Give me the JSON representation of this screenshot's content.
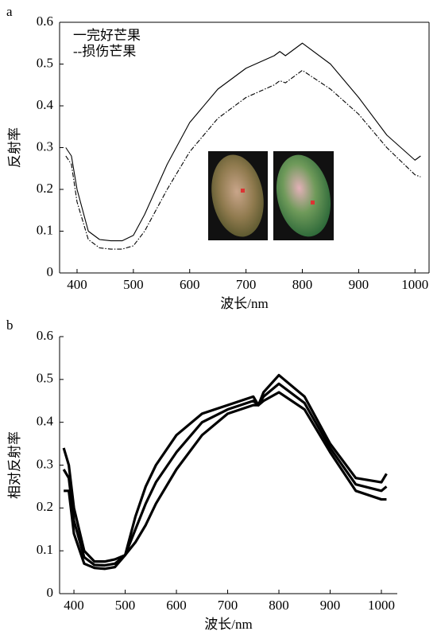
{
  "chart_data": [
    {
      "type": "line",
      "panel": "a",
      "ylabel": "反射率",
      "xlabel": "波长/nm",
      "x": [
        380,
        390,
        400,
        420,
        440,
        460,
        480,
        500,
        520,
        540,
        560,
        600,
        650,
        700,
        750,
        760,
        770,
        800,
        850,
        900,
        950,
        1000,
        1010
      ],
      "series": [
        {
          "name": "一完好芒果",
          "color": "#000000",
          "dash": "solid",
          "values": [
            0.3,
            0.28,
            0.2,
            0.1,
            0.08,
            0.077,
            0.077,
            0.09,
            0.14,
            0.2,
            0.26,
            0.36,
            0.44,
            0.49,
            0.52,
            0.53,
            0.52,
            0.55,
            0.5,
            0.42,
            0.33,
            0.27,
            0.28
          ]
        },
        {
          "name": "--损伤芒果",
          "color": "#000000",
          "dash": "dashdot",
          "values": [
            0.28,
            0.26,
            0.17,
            0.08,
            0.06,
            0.057,
            0.057,
            0.065,
            0.1,
            0.15,
            0.2,
            0.29,
            0.37,
            0.42,
            0.45,
            0.46,
            0.455,
            0.485,
            0.44,
            0.38,
            0.3,
            0.235,
            0.23
          ]
        }
      ],
      "xlim": [
        369,
        1025
      ],
      "xticks": [
        400,
        500,
        600,
        700,
        800,
        900,
        1000
      ],
      "ylim": [
        0,
        0.6
      ],
      "yticks": [
        0,
        0.1,
        0.2,
        0.3,
        0.4,
        0.5,
        0.6
      ],
      "box": true,
      "legend": "upper left"
    },
    {
      "type": "line",
      "panel": "b",
      "ylabel": "相对反射率",
      "xlabel": "波长/nm",
      "x": [
        380,
        390,
        400,
        420,
        440,
        460,
        480,
        500,
        520,
        540,
        560,
        600,
        650,
        700,
        750,
        760,
        770,
        800,
        850,
        900,
        950,
        1000,
        1010
      ],
      "series": [
        {
          "color": "#000000",
          "dash": "solid",
          "values": [
            0.34,
            0.3,
            0.2,
            0.1,
            0.075,
            0.075,
            0.08,
            0.09,
            0.18,
            0.25,
            0.3,
            0.37,
            0.42,
            0.44,
            0.46,
            0.44,
            0.47,
            0.51,
            0.46,
            0.35,
            0.27,
            0.26,
            0.28
          ]
        },
        {
          "color": "#000000",
          "dash": "solid",
          "values": [
            0.29,
            0.27,
            0.17,
            0.085,
            0.067,
            0.066,
            0.07,
            0.09,
            0.15,
            0.21,
            0.26,
            0.33,
            0.4,
            0.43,
            0.45,
            0.44,
            0.46,
            0.49,
            0.445,
            0.34,
            0.255,
            0.24,
            0.25
          ]
        },
        {
          "color": "#000000",
          "dash": "solid",
          "values": [
            0.24,
            0.24,
            0.14,
            0.07,
            0.06,
            0.058,
            0.062,
            0.09,
            0.12,
            0.16,
            0.21,
            0.29,
            0.37,
            0.42,
            0.44,
            0.44,
            0.45,
            0.47,
            0.43,
            0.33,
            0.24,
            0.22,
            0.22
          ]
        }
      ],
      "xlim": [
        372,
        1031
      ],
      "xticks": [
        400,
        500,
        600,
        700,
        800,
        900,
        1000
      ],
      "ylim": [
        0,
        0.6
      ],
      "yticks": [
        0,
        0.1,
        0.2,
        0.3,
        0.4,
        0.5,
        0.6
      ],
      "box": false
    }
  ]
}
